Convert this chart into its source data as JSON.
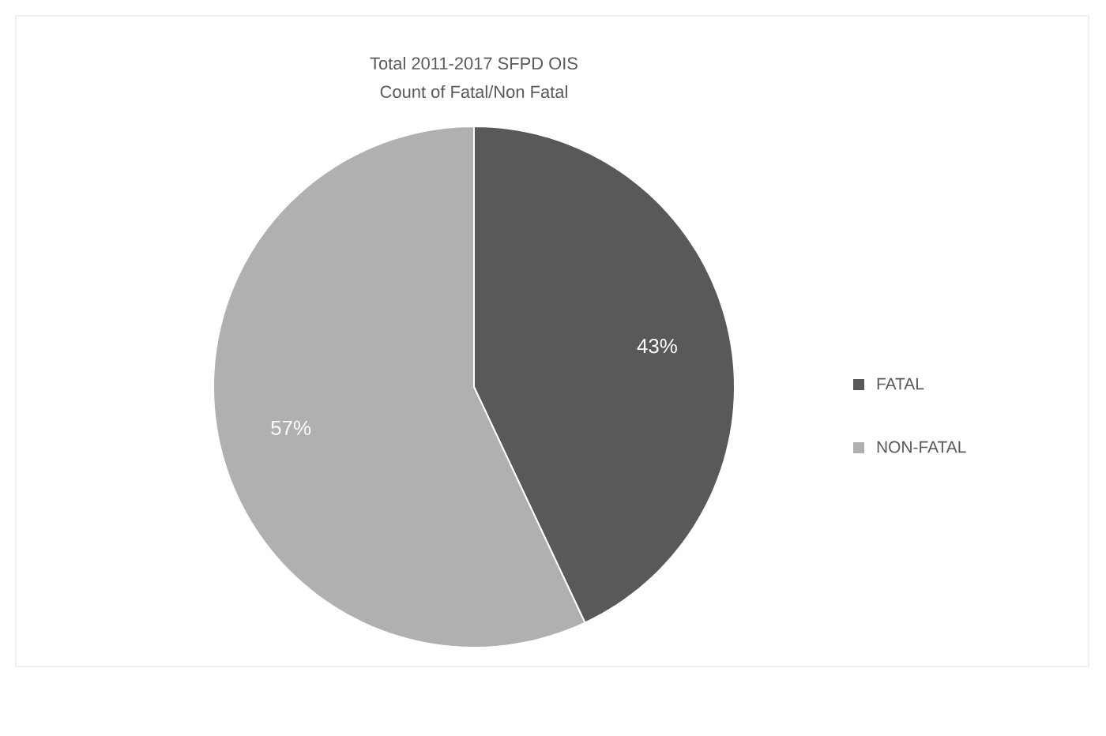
{
  "chart_data": {
    "type": "pie",
    "title": "Total 2011-2017 SFPD OIS",
    "subtitle": "Count of Fatal/Non Fatal",
    "categories": [
      "FATAL",
      "NON-FATAL"
    ],
    "values": [
      43,
      57
    ],
    "colors": [
      "#595959",
      "#b0b0b0"
    ],
    "value_labels": [
      "43%",
      "57%"
    ],
    "legend": "right"
  }
}
